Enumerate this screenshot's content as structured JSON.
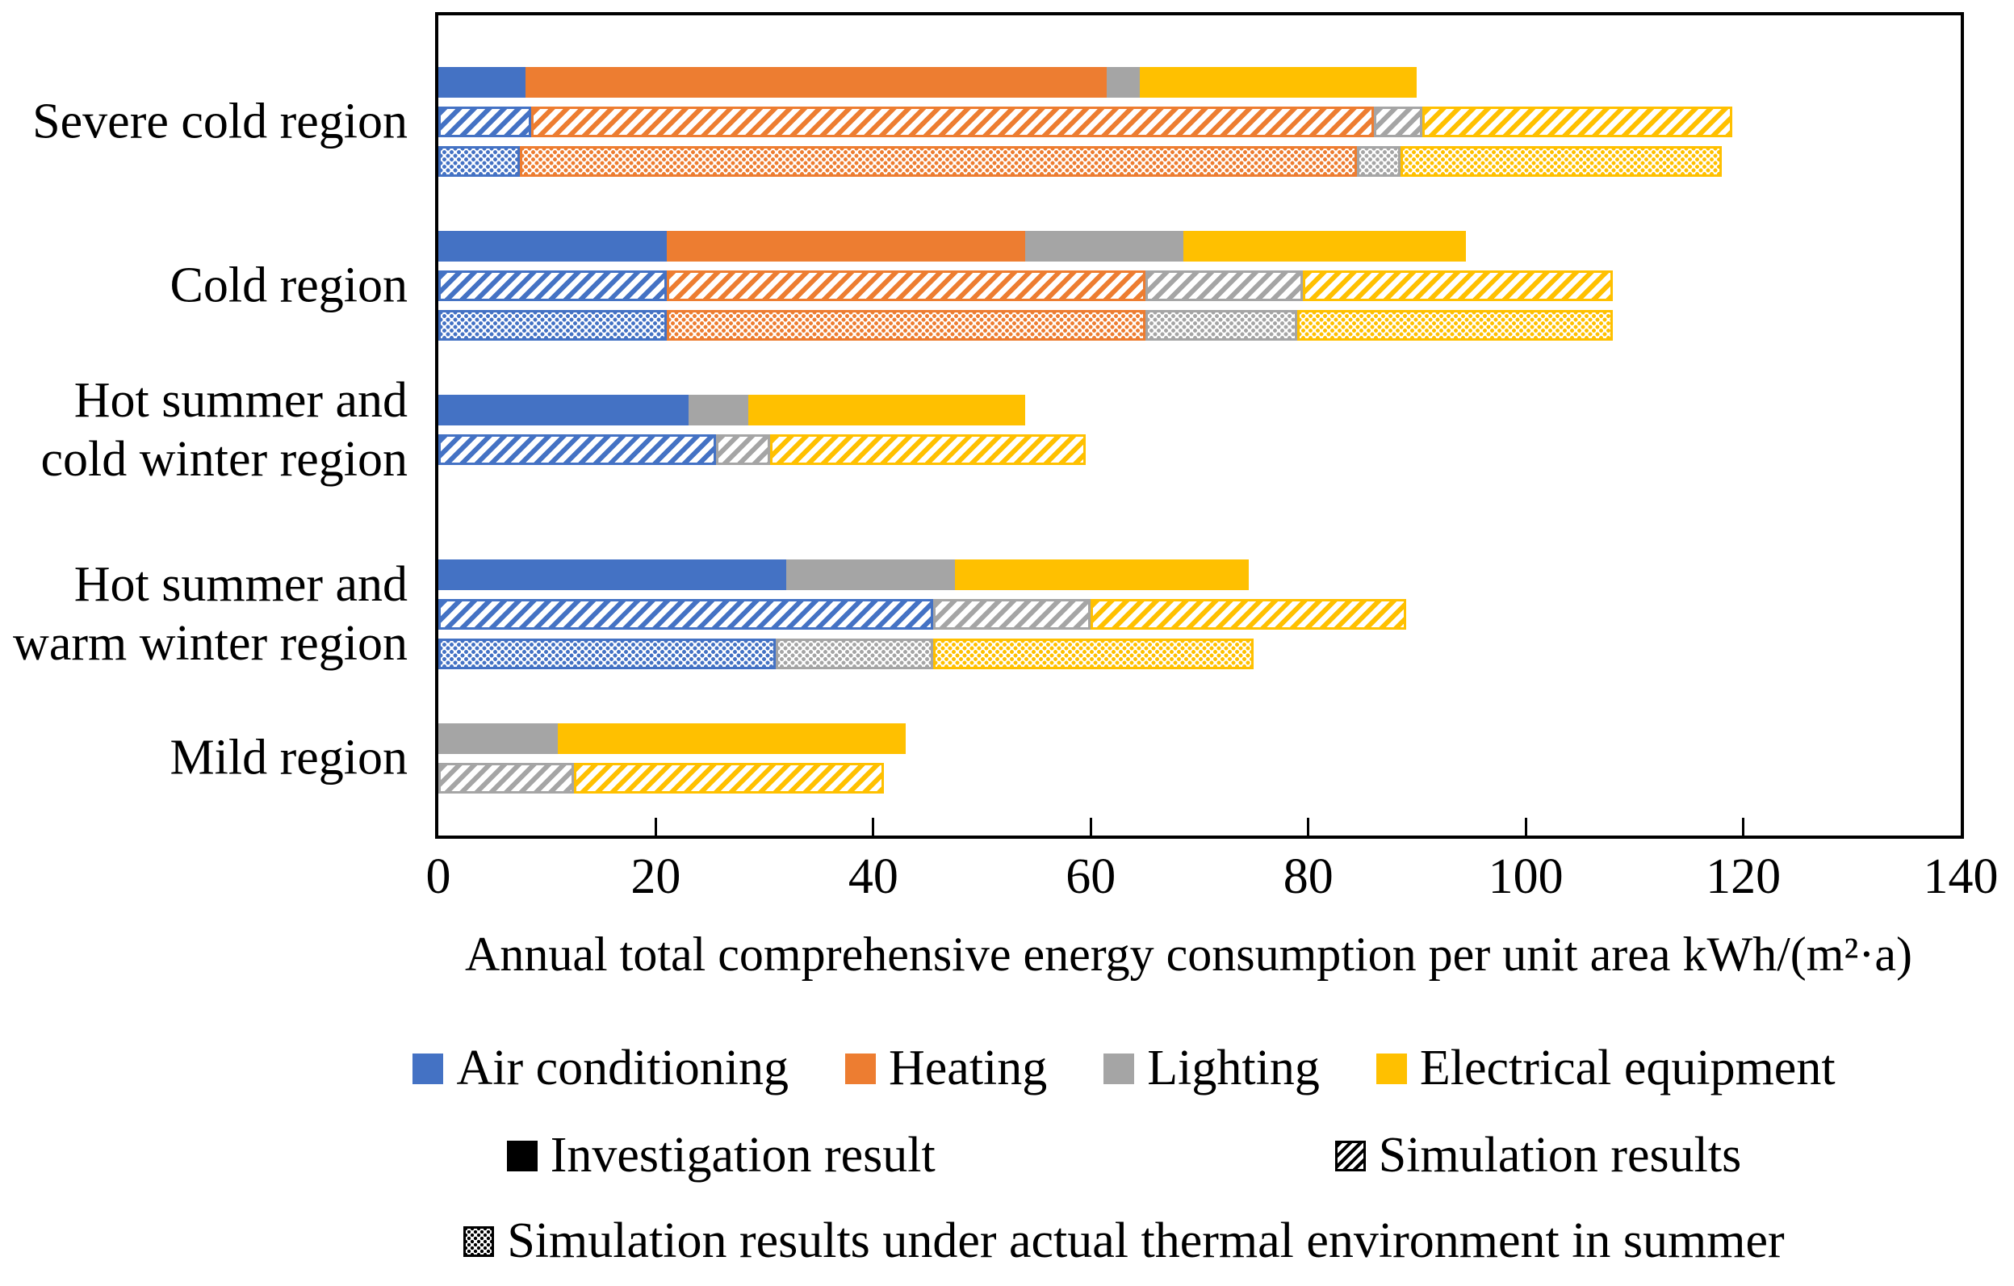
{
  "chart_data": {
    "type": "bar",
    "orientation": "horizontal",
    "stacked": true,
    "title": "",
    "xlabel": "Annual total comprehensive energy consumption per unit area kWh/(m²·a)",
    "ylabel": "",
    "xlim": [
      0,
      140
    ],
    "xticks": [
      0,
      20,
      40,
      60,
      80,
      100,
      120,
      140
    ],
    "grid": false,
    "legend_position": "bottom",
    "components": [
      {
        "name": "Air conditioning",
        "color": "#4472C4"
      },
      {
        "name": "Heating",
        "color": "#ED7D31"
      },
      {
        "name": "Lighting",
        "color": "#A5A5A5"
      },
      {
        "name": "Electrical equipment",
        "color": "#FFC000"
      }
    ],
    "bar_styles": [
      {
        "name": "Investigation result",
        "pattern": "solid"
      },
      {
        "name": "Simulation results",
        "pattern": "hatch"
      },
      {
        "name": "Simulation results under actual thermal environment in summer",
        "pattern": "dots"
      }
    ],
    "groups": [
      {
        "label": "Severe cold region",
        "bars": [
          {
            "style": "Investigation result",
            "values": [
              8,
              53.5,
              3,
              25.5
            ]
          },
          {
            "style": "Simulation results",
            "values": [
              8.5,
              77.5,
              4.5,
              28.5
            ]
          },
          {
            "style": "Simulation results under actual thermal environment in summer",
            "values": [
              7.5,
              77,
              4,
              29.5
            ]
          }
        ]
      },
      {
        "label": "Cold region",
        "bars": [
          {
            "style": "Investigation result",
            "values": [
              21,
              33,
              14.5,
              26
            ]
          },
          {
            "style": "Simulation results",
            "values": [
              21,
              44,
              14.5,
              28.5
            ]
          },
          {
            "style": "Simulation results under actual thermal environment in summer",
            "values": [
              21,
              44,
              14,
              29
            ]
          }
        ]
      },
      {
        "label": "Hot summer and\ncold winter region",
        "bars": [
          {
            "style": "Investigation result",
            "values": [
              23,
              0,
              5.5,
              25.5
            ]
          },
          {
            "style": "Simulation results",
            "values": [
              25.5,
              0,
              5,
              29
            ]
          }
        ]
      },
      {
        "label": "Hot summer and\nwarm winter region",
        "bars": [
          {
            "style": "Investigation result",
            "values": [
              32,
              0,
              15.5,
              27
            ]
          },
          {
            "style": "Simulation results",
            "values": [
              45.5,
              0,
              14.5,
              29
            ]
          },
          {
            "style": "Simulation results under actual thermal environment in summer",
            "values": [
              31,
              0,
              14.5,
              29.5
            ]
          }
        ]
      },
      {
        "label": "Mild region",
        "bars": [
          {
            "style": "Investigation result",
            "values": [
              0,
              0,
              11,
              32
            ]
          },
          {
            "style": "Simulation results",
            "values": [
              0,
              0,
              12.5,
              28.5
            ]
          }
        ]
      }
    ]
  }
}
